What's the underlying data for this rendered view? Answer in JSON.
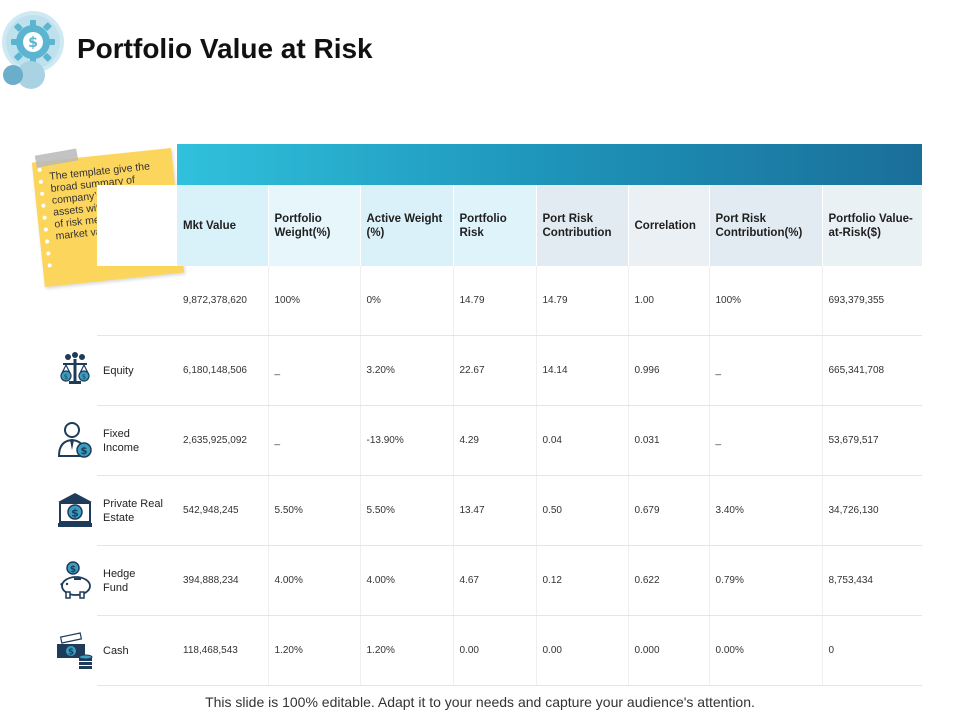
{
  "title": "Portfolio Value at Risk",
  "note": "The template give the broad summary of company’s financial assets with the estimate of risk measure and market value.",
  "headers": [
    "Mkt Value",
    "Portfolio Weight(%)",
    "Active Weight (%)",
    "Portfolio  Risk",
    "Port Risk Contribution",
    "Correlation",
    "Port Risk Contribution(%)",
    "Portfolio Value-at-Risk($)"
  ],
  "rows": [
    {
      "label": "",
      "icon": "",
      "values": [
        "9,872,378,620",
        "100%",
        "0%",
        "14.79",
        "14.79",
        "1.00",
        "100%",
        "693,379,355"
      ]
    },
    {
      "label": "Equity",
      "icon": "scales-icon",
      "values": [
        "6,180,148,506",
        "_",
        "3.20%",
        "22.67",
        "14.14",
        "0.996",
        "_",
        "665,341,708"
      ]
    },
    {
      "label": "Fixed Income",
      "icon": "businessman-dollar-icon",
      "values": [
        "2,635,925,092",
        "_",
        "-13.90%",
        "4.29",
        "0.04",
        "0.031",
        "_",
        "53,679,517"
      ]
    },
    {
      "label": "Private Real Estate",
      "icon": "bank-building-icon",
      "values": [
        "542,948,245",
        "5.50%",
        "5.50%",
        "13.47",
        "0.50",
        "0.679",
        "3.40%",
        "34,726,130"
      ]
    },
    {
      "label": "Hedge Fund",
      "icon": "piggy-bank-icon",
      "values": [
        "394,888,234",
        "4.00%",
        "4.00%",
        "4.67",
        "0.12",
        "0.622",
        "0.79%",
        "8,753,434"
      ]
    },
    {
      "label": "Cash",
      "icon": "cash-coins-icon",
      "values": [
        "118,468,543",
        "1.20%",
        "1.20%",
        "0.00",
        "0.00",
        "0.000",
        "0.00%",
        "0"
      ]
    }
  ],
  "footer": "This slide is 100% editable. Adapt it to your needs and capture your audience's attention.",
  "colors": {
    "band_start": "#30c1dc",
    "band_end": "#1a6f99",
    "note": "#fcd55c",
    "logo": "#5bb5d0"
  }
}
